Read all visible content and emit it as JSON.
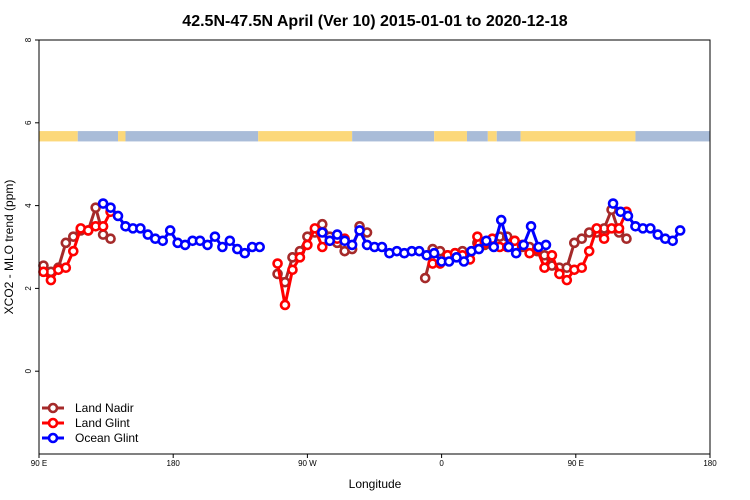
{
  "chart_data": {
    "type": "line",
    "title": "42.5N-47.5N April (Ver 10)   2015-01-01 to 2020-12-18",
    "xlabel": "Longitude",
    "ylabel": "XCO2 - MLO trend (ppm)",
    "xlim": [
      90,
      540
    ],
    "ylim": [
      -2,
      8
    ],
    "x_ticks": [
      {
        "value": 90,
        "label": "90 E"
      },
      {
        "value": 180,
        "label": "180"
      },
      {
        "value": 270,
        "label": "90 W"
      },
      {
        "value": 360,
        "label": "0"
      },
      {
        "value": 450,
        "label": "90 E"
      },
      {
        "value": 540,
        "label": "180"
      }
    ],
    "y_ticks": [
      0,
      2,
      4,
      6,
      8
    ],
    "grid": false,
    "legend_position": "bottom-left",
    "colors": {
      "land_nadir": "#a52a2a",
      "land_glint": "#ff0000",
      "ocean_glint": "#0000ff",
      "band_land": "#fcd87a",
      "band_ocean": "#a9bcd8"
    },
    "surface_band": {
      "y_range": [
        5.55,
        5.8
      ],
      "segments": [
        {
          "start": 90,
          "end": 116,
          "type": "land"
        },
        {
          "start": 116,
          "end": 143,
          "type": "ocean"
        },
        {
          "start": 143,
          "end": 148,
          "type": "land"
        },
        {
          "start": 148,
          "end": 237,
          "type": "ocean"
        },
        {
          "start": 237,
          "end": 300,
          "type": "land"
        },
        {
          "start": 300,
          "end": 355,
          "type": "ocean"
        },
        {
          "start": 355,
          "end": 377,
          "type": "land"
        },
        {
          "start": 377,
          "end": 391,
          "type": "ocean"
        },
        {
          "start": 391,
          "end": 397,
          "type": "land"
        },
        {
          "start": 397,
          "end": 413,
          "type": "ocean"
        },
        {
          "start": 413,
          "end": 490,
          "type": "land"
        },
        {
          "start": 490,
          "end": 540,
          "type": "ocean"
        }
      ]
    },
    "series": [
      {
        "name": "Land Nadir",
        "color": "#a52a2a",
        "segments": [
          [
            [
              93,
              2.55
            ],
            [
              98,
              2.4
            ],
            [
              103,
              2.5
            ],
            [
              108,
              3.1
            ],
            [
              113,
              3.25
            ],
            [
              118,
              3.4
            ],
            [
              123,
              3.4
            ],
            [
              128,
              3.95
            ],
            [
              133,
              3.3
            ],
            [
              138,
              3.2
            ]
          ],
          [
            [
              250,
              2.35
            ],
            [
              255,
              2.15
            ],
            [
              260,
              2.75
            ],
            [
              265,
              2.9
            ],
            [
              270,
              3.25
            ],
            [
              275,
              3.35
            ],
            [
              280,
              3.55
            ],
            [
              285,
              3.25
            ],
            [
              290,
              3.1
            ],
            [
              295,
              2.9
            ],
            [
              300,
              2.95
            ],
            [
              305,
              3.5
            ],
            [
              310,
              3.35
            ]
          ],
          [
            [
              349,
              2.25
            ],
            [
              354,
              2.95
            ],
            [
              359,
              2.9
            ],
            [
              364,
              2.8
            ],
            [
              369,
              2.85
            ],
            [
              374,
              2.9
            ],
            [
              379,
              2.85
            ],
            [
              384,
              3.1
            ],
            [
              389,
              3.05
            ],
            [
              394,
              3.05
            ],
            [
              399,
              3.25
            ],
            [
              404,
              3.25
            ],
            [
              409,
              3.15
            ],
            [
              414,
              3.0
            ],
            [
              419,
              3.0
            ],
            [
              424,
              2.9
            ],
            [
              429,
              2.8
            ],
            [
              434,
              2.55
            ],
            [
              439,
              2.5
            ],
            [
              444,
              2.5
            ],
            [
              449,
              3.1
            ],
            [
              454,
              3.2
            ],
            [
              459,
              3.35
            ],
            [
              464,
              3.35
            ],
            [
              469,
              3.45
            ],
            [
              474,
              3.9
            ],
            [
              479,
              3.35
            ],
            [
              484,
              3.2
            ]
          ]
        ]
      },
      {
        "name": "Land Glint",
        "color": "#ff0000",
        "segments": [
          [
            [
              93,
              2.4
            ],
            [
              98,
              2.2
            ],
            [
              103,
              2.45
            ],
            [
              108,
              2.5
            ],
            [
              113,
              2.9
            ],
            [
              118,
              3.45
            ],
            [
              123,
              3.4
            ],
            [
              128,
              3.5
            ],
            [
              133,
              3.5
            ],
            [
              138,
              3.85
            ]
          ],
          [
            [
              250,
              2.6
            ],
            [
              255,
              1.6
            ],
            [
              260,
              2.45
            ],
            [
              265,
              2.75
            ],
            [
              270,
              3.05
            ],
            [
              275,
              3.45
            ],
            [
              280,
              3.0
            ],
            [
              285,
              3.15
            ],
            [
              290,
              3.2
            ],
            [
              295,
              3.2
            ]
          ],
          [
            [
              354,
              2.6
            ],
            [
              359,
              2.6
            ],
            [
              364,
              2.8
            ],
            [
              369,
              2.85
            ],
            [
              374,
              2.8
            ],
            [
              379,
              2.7
            ],
            [
              384,
              3.25
            ],
            [
              389,
              3.1
            ],
            [
              394,
              3.2
            ],
            [
              399,
              3.0
            ],
            [
              404,
              3.0
            ],
            [
              409,
              3.15
            ],
            [
              414,
              3.05
            ],
            [
              419,
              2.85
            ],
            [
              424,
              2.95
            ],
            [
              429,
              2.5
            ],
            [
              434,
              2.8
            ],
            [
              439,
              2.35
            ],
            [
              444,
              2.2
            ],
            [
              449,
              2.45
            ],
            [
              454,
              2.5
            ],
            [
              459,
              2.9
            ],
            [
              464,
              3.45
            ],
            [
              469,
              3.2
            ],
            [
              474,
              3.45
            ],
            [
              479,
              3.45
            ],
            [
              484,
              3.85
            ]
          ]
        ]
      },
      {
        "name": "Ocean Glint",
        "color": "#0000ff",
        "segments": [
          [
            [
              133,
              4.05
            ],
            [
              138,
              3.95
            ],
            [
              143,
              3.75
            ],
            [
              148,
              3.5
            ],
            [
              153,
              3.45
            ],
            [
              158,
              3.45
            ],
            [
              163,
              3.3
            ],
            [
              168,
              3.2
            ],
            [
              173,
              3.15
            ],
            [
              178,
              3.4
            ],
            [
              183,
              3.1
            ],
            [
              188,
              3.05
            ],
            [
              193,
              3.15
            ],
            [
              198,
              3.15
            ],
            [
              203,
              3.05
            ],
            [
              208,
              3.25
            ],
            [
              213,
              3.0
            ],
            [
              218,
              3.15
            ],
            [
              223,
              2.95
            ],
            [
              228,
              2.85
            ],
            [
              233,
              3.0
            ],
            [
              238,
              3.0
            ]
          ],
          [
            [
              280,
              3.35
            ],
            [
              285,
              3.15
            ],
            [
              290,
              3.3
            ],
            [
              295,
              3.15
            ],
            [
              300,
              3.05
            ],
            [
              305,
              3.4
            ],
            [
              310,
              3.05
            ],
            [
              315,
              3.0
            ],
            [
              320,
              3.0
            ],
            [
              325,
              2.85
            ],
            [
              330,
              2.9
            ],
            [
              335,
              2.85
            ],
            [
              340,
              2.9
            ],
            [
              345,
              2.9
            ],
            [
              350,
              2.8
            ],
            [
              355,
              2.85
            ],
            [
              360,
              2.65
            ],
            [
              365,
              2.65
            ],
            [
              370,
              2.75
            ],
            [
              375,
              2.65
            ],
            [
              380,
              2.9
            ],
            [
              385,
              2.95
            ],
            [
              390,
              3.15
            ],
            [
              395,
              3.0
            ],
            [
              400,
              3.65
            ],
            [
              405,
              3.0
            ],
            [
              410,
              2.85
            ],
            [
              415,
              3.05
            ],
            [
              420,
              3.5
            ],
            [
              425,
              3.0
            ],
            [
              430,
              3.05
            ]
          ],
          [
            [
              475,
              4.05
            ],
            [
              480,
              3.85
            ],
            [
              485,
              3.75
            ],
            [
              490,
              3.5
            ],
            [
              495,
              3.45
            ],
            [
              500,
              3.45
            ],
            [
              505,
              3.3
            ],
            [
              510,
              3.2
            ],
            [
              515,
              3.15
            ],
            [
              520,
              3.4
            ]
          ]
        ]
      }
    ]
  }
}
